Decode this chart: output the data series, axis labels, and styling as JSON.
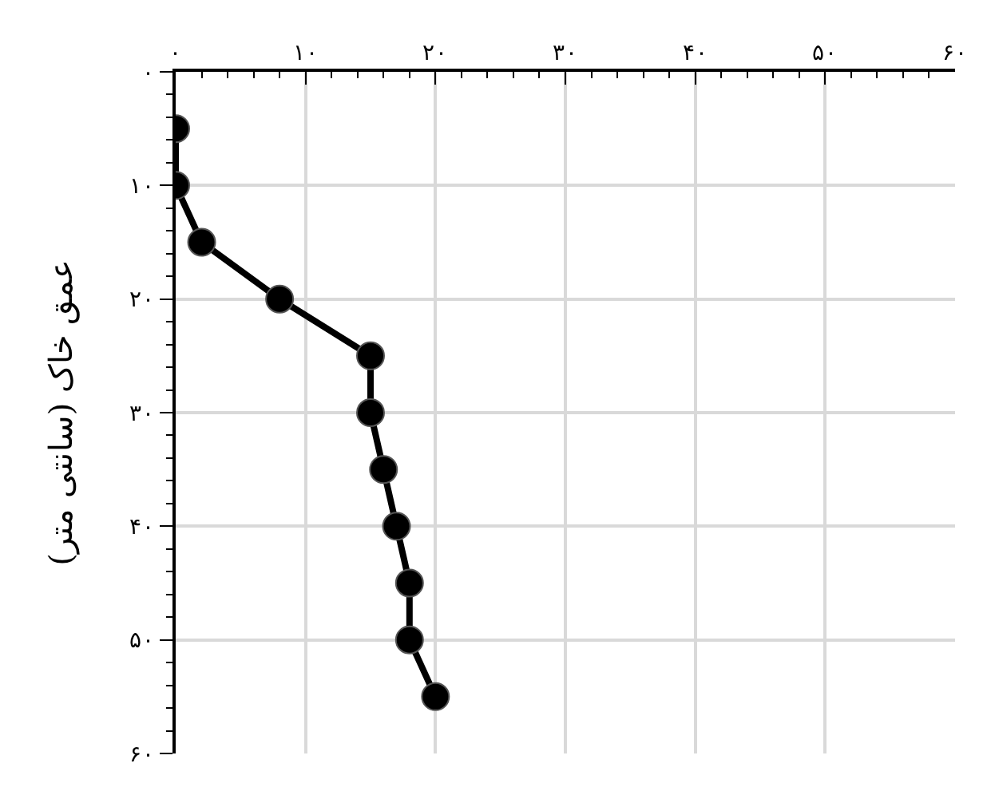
{
  "chart_data": {
    "type": "line",
    "ylabel": "عمق خاک (سانتی متر)",
    "series": [
      {
        "color": "#000000",
        "x": [
          0,
          0,
          2,
          8,
          15,
          15,
          16,
          17,
          18,
          18,
          20
        ],
        "values": [
          5,
          10,
          15,
          20,
          25,
          30,
          35,
          40,
          45,
          50,
          55
        ]
      }
    ],
    "xlim": [
      0,
      60
    ],
    "xticks": [
      {
        "value": 0,
        "label": "۰"
      },
      {
        "value": 10,
        "label": "۱۰"
      },
      {
        "value": 20,
        "label": "۲۰"
      },
      {
        "value": 30,
        "label": "۳۰"
      },
      {
        "value": 40,
        "label": "۴۰"
      },
      {
        "value": 50,
        "label": "۵۰"
      },
      {
        "value": 60,
        "label": "۶۰"
      }
    ],
    "ylim": [
      60,
      0
    ],
    "yticks": [
      {
        "value": 0,
        "label": "۰"
      },
      {
        "value": 10,
        "label": "۱۰"
      },
      {
        "value": 20,
        "label": "۲۰"
      },
      {
        "value": 30,
        "label": "۳۰"
      },
      {
        "value": 40,
        "label": "۴۰"
      },
      {
        "value": 50,
        "label": "۵۰"
      },
      {
        "value": 60,
        "label": "۶۰"
      }
    ],
    "grid": true,
    "marker": "circle",
    "line_style": "solid"
  }
}
